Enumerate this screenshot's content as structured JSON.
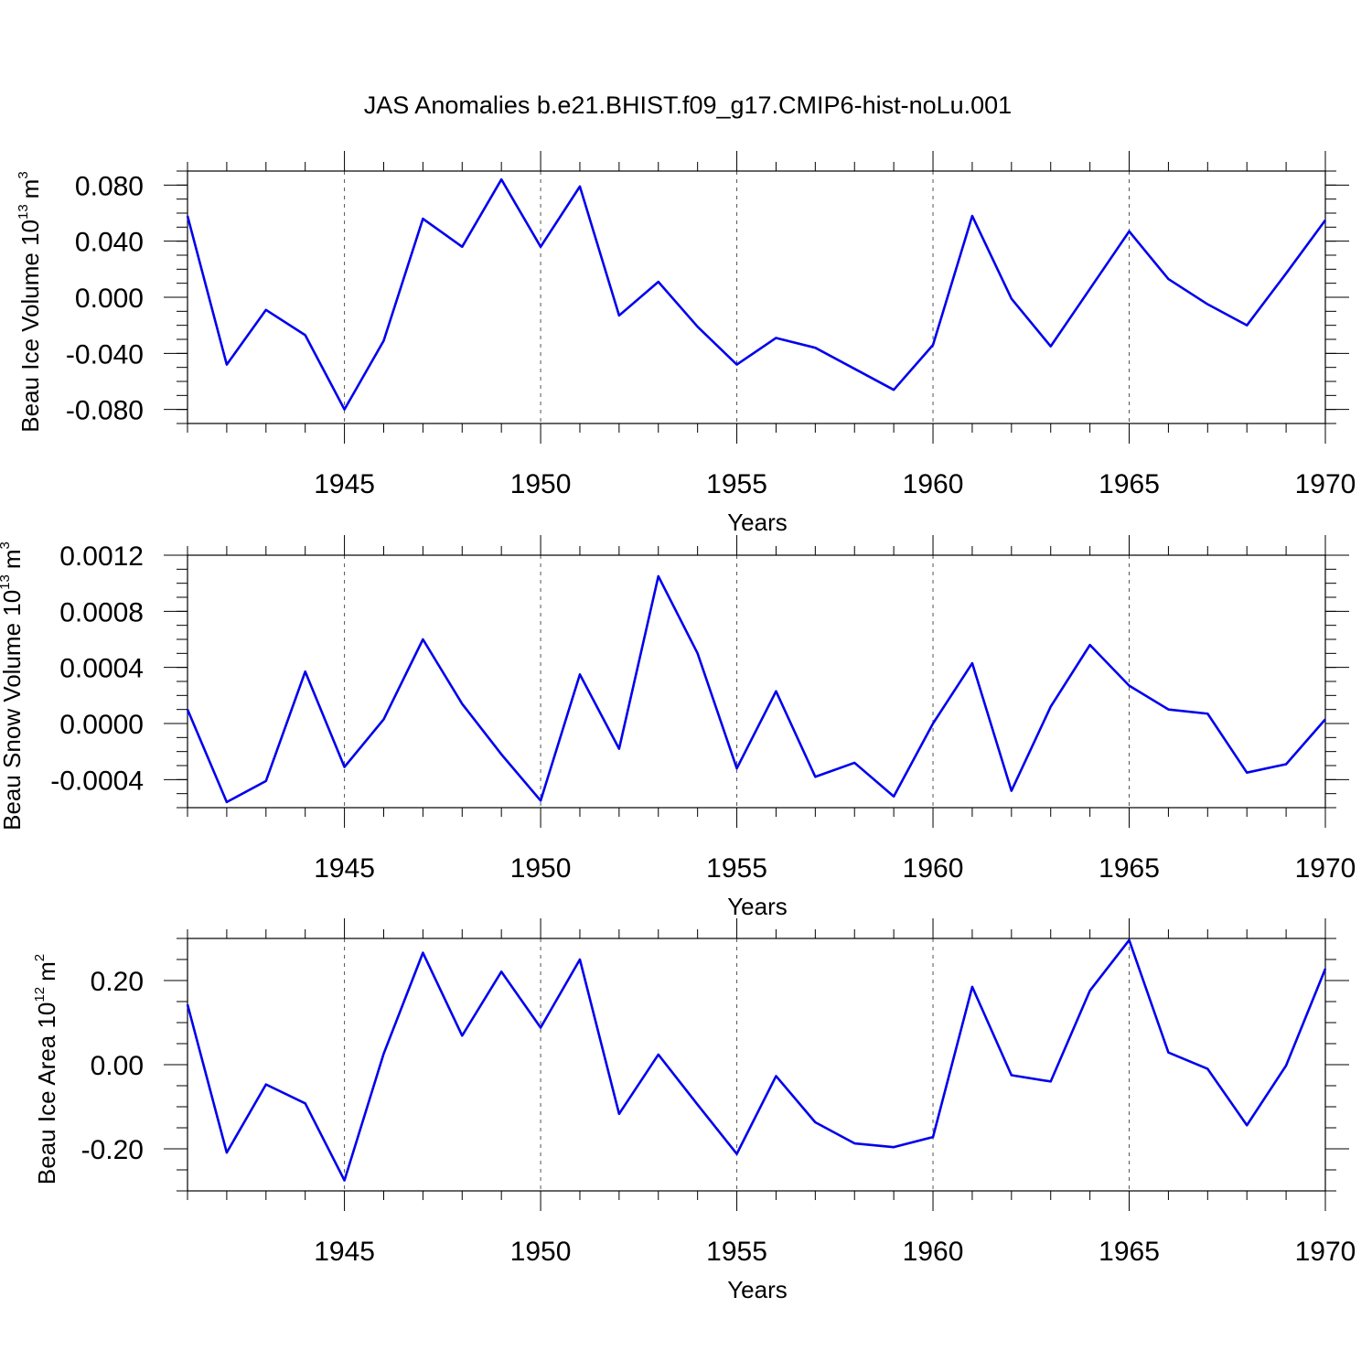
{
  "title": "JAS Anomalies b.e21.BHIST.f09_g17.CMIP6-hist-noLu.001",
  "line_color": "#0000ee",
  "chart_data": [
    {
      "type": "line",
      "name": "beau-ice-volume",
      "ylabel": "Beau Ice Volume 10",
      "ylabel_exp": "13",
      "ylabel_unit": "m",
      "ylabel_unit_exp": "3",
      "xlabel": "Years",
      "xlim": [
        1941,
        1970
      ],
      "ylim": [
        -0.09,
        0.09
      ],
      "x_ticks": [
        1945,
        1950,
        1955,
        1960,
        1965,
        1970
      ],
      "x_tick_labels": [
        "1945",
        "1950",
        "1955",
        "1960",
        "1965",
        "1970"
      ],
      "y_ticks": [
        -0.08,
        -0.04,
        0.0,
        0.04,
        0.08
      ],
      "y_tick_labels": [
        "-0.080",
        "-0.040",
        "0.000",
        "0.040",
        "0.080"
      ],
      "y_minor_step": 0.01,
      "x": [
        1941,
        1942,
        1943,
        1944,
        1945,
        1946,
        1947,
        1948,
        1949,
        1950,
        1951,
        1952,
        1953,
        1954,
        1955,
        1956,
        1957,
        1958,
        1959,
        1960,
        1961,
        1962,
        1963,
        1964,
        1965,
        1966,
        1967,
        1968,
        1969,
        1970
      ],
      "values": [
        0.058,
        -0.048,
        -0.009,
        -0.027,
        -0.08,
        -0.031,
        0.056,
        0.036,
        0.084,
        0.036,
        0.079,
        -0.013,
        0.011,
        -0.021,
        -0.048,
        -0.029,
        -0.036,
        -0.051,
        -0.066,
        -0.034,
        0.058,
        -0.001,
        -0.035,
        0.006,
        0.047,
        0.013,
        -0.005,
        -0.02,
        0.017,
        0.055
      ]
    },
    {
      "type": "line",
      "name": "beau-snow-volume",
      "ylabel": "Beau Snow Volume 10",
      "ylabel_exp": "13",
      "ylabel_unit": "m",
      "ylabel_unit_exp": "3",
      "xlabel": "Years",
      "xlim": [
        1941,
        1970
      ],
      "ylim": [
        -0.0006,
        0.0012
      ],
      "x_ticks": [
        1945,
        1950,
        1955,
        1960,
        1965,
        1970
      ],
      "x_tick_labels": [
        "1945",
        "1950",
        "1955",
        "1960",
        "1965",
        "1970"
      ],
      "y_ticks": [
        -0.0004,
        0.0,
        0.0004,
        0.0008,
        0.0012
      ],
      "y_tick_labels": [
        "-0.0004",
        "0.0000",
        "0.0004",
        "0.0008",
        "0.0012"
      ],
      "y_minor_step": 0.0001,
      "x": [
        1941,
        1942,
        1943,
        1944,
        1945,
        1946,
        1947,
        1948,
        1949,
        1950,
        1951,
        1952,
        1953,
        1954,
        1955,
        1956,
        1957,
        1958,
        1959,
        1960,
        1961,
        1962,
        1963,
        1964,
        1965,
        1966,
        1967,
        1968,
        1969,
        1970
      ],
      "values": [
        0.0001,
        -0.00056,
        -0.00041,
        0.00037,
        -0.00031,
        3e-05,
        0.0006,
        0.00014,
        -0.00022,
        -0.00055,
        0.00035,
        -0.00018,
        0.00105,
        0.0005,
        -0.00032,
        0.00023,
        -0.00038,
        -0.00028,
        -0.00052,
        0.0,
        0.00043,
        -0.00048,
        0.00012,
        0.00056,
        0.00027,
        0.0001,
        7e-05,
        -0.00035,
        -0.00029,
        3e-05
      ]
    },
    {
      "type": "line",
      "name": "beau-ice-area",
      "ylabel": "Beau Ice Area 10",
      "ylabel_exp": "12",
      "ylabel_unit": "m",
      "ylabel_unit_exp": "2",
      "xlabel": "Years",
      "xlim": [
        1941,
        1970
      ],
      "ylim": [
        -0.3,
        0.3
      ],
      "x_ticks": [
        1945,
        1950,
        1955,
        1960,
        1965,
        1970
      ],
      "x_tick_labels": [
        "1945",
        "1950",
        "1955",
        "1960",
        "1965",
        "1970"
      ],
      "y_ticks": [
        -0.2,
        0.0,
        0.2
      ],
      "y_tick_labels": [
        "-0.20",
        "0.00",
        "0.20"
      ],
      "y_minor_step": 0.05,
      "x": [
        1941,
        1942,
        1943,
        1944,
        1945,
        1946,
        1947,
        1948,
        1949,
        1950,
        1951,
        1952,
        1953,
        1954,
        1955,
        1956,
        1957,
        1958,
        1959,
        1960,
        1961,
        1962,
        1963,
        1964,
        1965,
        1966,
        1967,
        1968,
        1969,
        1970
      ],
      "values": [
        0.143,
        -0.209,
        -0.047,
        -0.092,
        -0.275,
        0.026,
        0.266,
        0.069,
        0.221,
        0.088,
        0.25,
        -0.117,
        0.024,
        -0.095,
        -0.212,
        -0.027,
        -0.137,
        -0.187,
        -0.196,
        -0.172,
        0.185,
        -0.025,
        -0.04,
        0.176,
        0.296,
        0.029,
        -0.01,
        -0.144,
        -0.002,
        0.228
      ]
    }
  ]
}
